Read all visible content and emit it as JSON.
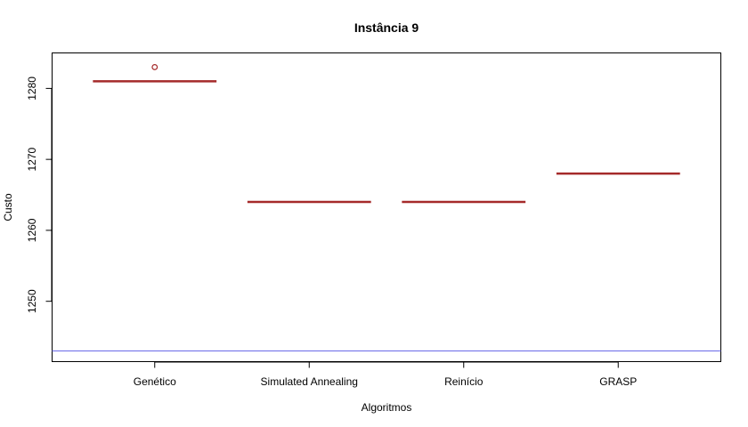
{
  "chart_data": {
    "type": "boxplot",
    "title": "Instância 9",
    "xlabel": "Algoritmos",
    "ylabel": "Custo",
    "categories": [
      "Genético",
      "Simulated Annealing",
      "Reinício",
      "GRASP"
    ],
    "series": [
      {
        "values": [
          1281,
          1264,
          1264,
          1268
        ],
        "outliers": [
          [
            1283
          ],
          [],
          [],
          []
        ]
      }
    ],
    "reference_line": {
      "y": 1243,
      "color": "#6a6ae8"
    },
    "yticks": [
      1250,
      1260,
      1270,
      1280
    ],
    "ylim": [
      1241.5,
      1285
    ],
    "grid": false,
    "colors": {
      "box": "#a52a2a",
      "reference": "#6a6ae8"
    }
  }
}
